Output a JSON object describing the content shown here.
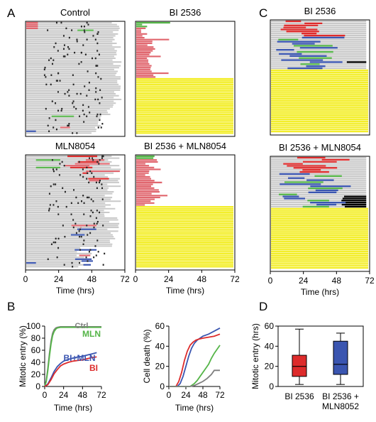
{
  "panels": {
    "A": {
      "letter": "A",
      "plots": [
        {
          "title": "Control",
          "key": "ctrl"
        },
        {
          "title": "BI 2536",
          "key": "bi"
        },
        {
          "title": "MLN8054",
          "key": "mln"
        },
        {
          "title": "BI 2536 + MLN8054",
          "key": "bimln"
        }
      ],
      "x_ticks": [
        "0",
        "24",
        "48",
        "72"
      ],
      "x_label": "Time (hrs)"
    },
    "C": {
      "letter": "C",
      "plots": [
        {
          "title": "BI 2536",
          "key": "c_bi"
        },
        {
          "title": "BI 2536 + MLN8054",
          "key": "c_bimln"
        }
      ],
      "x_ticks": [
        "0",
        "24",
        "48",
        "72"
      ],
      "x_label": "Time (hrs)"
    },
    "B": {
      "letter": "B"
    },
    "D": {
      "letter": "D"
    }
  },
  "colors": {
    "track": "#c9c9c9",
    "mitosis": "#222222",
    "red": "#dd2b2b",
    "pink": "#e0666e",
    "blue": "#3a55b0",
    "green": "#55b548",
    "yellow": "#f3ee2a",
    "ctrl_gray": "#7f7f7f"
  },
  "chart_data": [
    {
      "type": "line",
      "ylabel": "Mitotic entry (%)",
      "xlabel": "Time (hrs)",
      "ylim": [
        0,
        100
      ],
      "xlim": [
        0,
        72
      ],
      "x_ticks": [
        "0",
        "24",
        "48",
        "72"
      ],
      "y_ticks": [
        "0",
        "20",
        "40",
        "60",
        "80",
        "100"
      ],
      "series": [
        {
          "name": "Ctrl",
          "color": "#7f7f7f",
          "x": [
            0,
            2,
            4,
            6,
            8,
            10,
            12,
            14,
            16,
            20,
            72
          ],
          "y": [
            0,
            10,
            30,
            55,
            75,
            88,
            94,
            97,
            98,
            99,
            99
          ]
        },
        {
          "name": "MLN",
          "color": "#55b548",
          "x": [
            0,
            2,
            4,
            6,
            8,
            10,
            12,
            14,
            16,
            20,
            72
          ],
          "y": [
            0,
            8,
            26,
            50,
            70,
            84,
            91,
            95,
            97,
            98,
            98
          ]
        },
        {
          "name": "BI+MLN",
          "color": "#3a55b0",
          "x": [
            0,
            4,
            8,
            12,
            16,
            20,
            24,
            30,
            36,
            42,
            48,
            54,
            60,
            66
          ],
          "y": [
            0,
            4,
            14,
            25,
            33,
            38,
            42,
            45,
            47,
            49,
            50,
            52,
            54,
            56
          ]
        },
        {
          "name": "BI",
          "color": "#dd2b2b",
          "x": [
            0,
            4,
            8,
            12,
            16,
            20,
            24,
            30,
            36,
            42,
            48,
            54,
            60,
            66
          ],
          "y": [
            0,
            3,
            11,
            21,
            28,
            34,
            37,
            40,
            42,
            43,
            44,
            46,
            48,
            49
          ]
        }
      ]
    },
    {
      "type": "line",
      "ylabel": "Cell death (%)",
      "xlabel": "Time (hrs)",
      "ylim": [
        0,
        60
      ],
      "xlim": [
        0,
        72
      ],
      "x_ticks": [
        "0",
        "24",
        "48",
        "72"
      ],
      "y_ticks": [
        "0",
        "20",
        "40",
        "60"
      ],
      "series": [
        {
          "name": "",
          "color": "#3a55b0",
          "x": [
            0,
            12,
            16,
            20,
            24,
            28,
            32,
            36,
            40,
            44,
            48,
            56,
            64,
            72
          ],
          "y": [
            0,
            0,
            3,
            10,
            20,
            30,
            38,
            43,
            46,
            48,
            50,
            52,
            55,
            58
          ]
        },
        {
          "name": "",
          "color": "#dd2b2b",
          "x": [
            0,
            10,
            14,
            18,
            22,
            26,
            30,
            34,
            38,
            42,
            48,
            56,
            64,
            72
          ],
          "y": [
            0,
            0,
            5,
            14,
            26,
            35,
            41,
            44,
            46,
            47,
            48,
            49,
            50,
            52
          ]
        },
        {
          "name": "",
          "color": "#55b548",
          "x": [
            0,
            30,
            36,
            40,
            44,
            48,
            52,
            56,
            60,
            64,
            68,
            72
          ],
          "y": [
            0,
            0,
            3,
            6,
            10,
            14,
            18,
            22,
            28,
            33,
            37,
            41
          ]
        },
        {
          "name": "",
          "color": "#7f7f7f",
          "x": [
            0,
            30,
            36,
            42,
            48,
            54,
            60,
            64,
            72
          ],
          "y": [
            0,
            0,
            1,
            3,
            5,
            8,
            12,
            16,
            16
          ]
        }
      ]
    },
    {
      "type": "box",
      "ylabel": "Mitotic entry (hrs)",
      "ylim": [
        0,
        60
      ],
      "y_ticks": [
        "0",
        "20",
        "40",
        "60"
      ],
      "categories": [
        "BI 2536",
        "BI 2536 +\nMLN8052"
      ],
      "boxes": [
        {
          "min": 2,
          "q1": 10,
          "median": 20,
          "q3": 31,
          "max": 57,
          "color": "#dd2b2b"
        },
        {
          "min": 2,
          "q1": 12,
          "median": 22,
          "q3": 45,
          "max": 53,
          "color": "#3a55b0"
        }
      ]
    }
  ]
}
